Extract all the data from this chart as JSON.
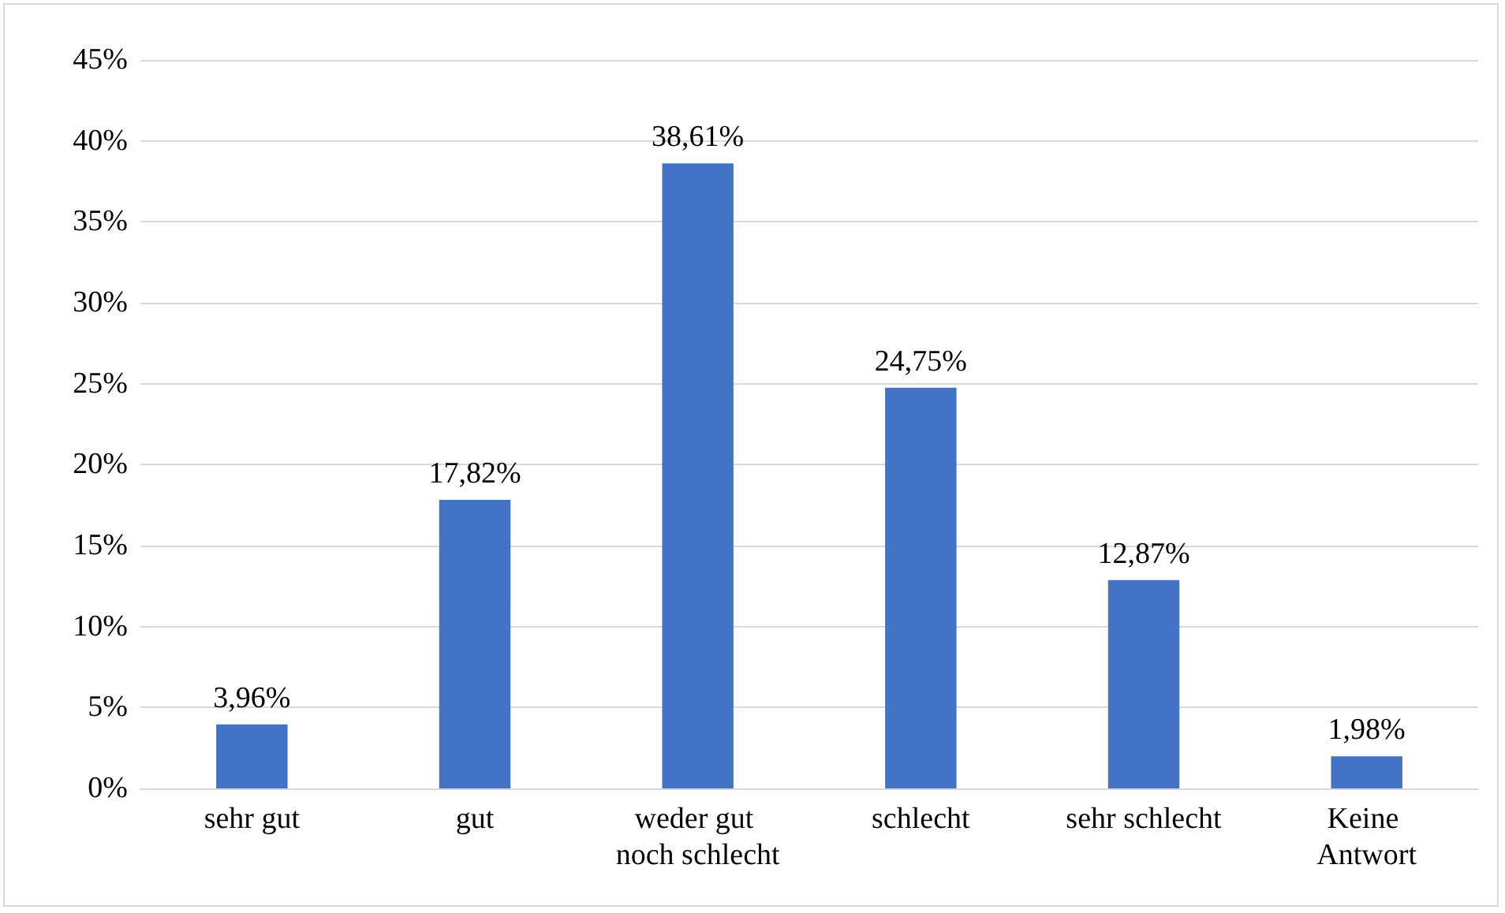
{
  "chart_data": {
    "type": "bar",
    "categories": [
      "sehr gut",
      "gut",
      "weder gut noch schlecht",
      "schlecht",
      "sehr schlecht",
      "Keine Antwort"
    ],
    "values": [
      3.96,
      17.82,
      38.61,
      24.75,
      12.87,
      1.98
    ],
    "value_labels": [
      "3,96%",
      "17,82%",
      "38,61%",
      "24,75%",
      "12,87%",
      "1,98%"
    ],
    "color": "#4472c4",
    "ylim": [
      0,
      45
    ],
    "yticks": [
      {
        "value": 0,
        "label": "0%"
      },
      {
        "value": 5,
        "label": "5%"
      },
      {
        "value": 10,
        "label": "10%"
      },
      {
        "value": 15,
        "label": "15%"
      },
      {
        "value": 20,
        "label": "20%"
      },
      {
        "value": 25,
        "label": "25%"
      },
      {
        "value": 30,
        "label": "30%"
      },
      {
        "value": 35,
        "label": "35%"
      },
      {
        "value": 40,
        "label": "40%"
      },
      {
        "value": 45,
        "label": "45%"
      }
    ],
    "grid": "y"
  }
}
